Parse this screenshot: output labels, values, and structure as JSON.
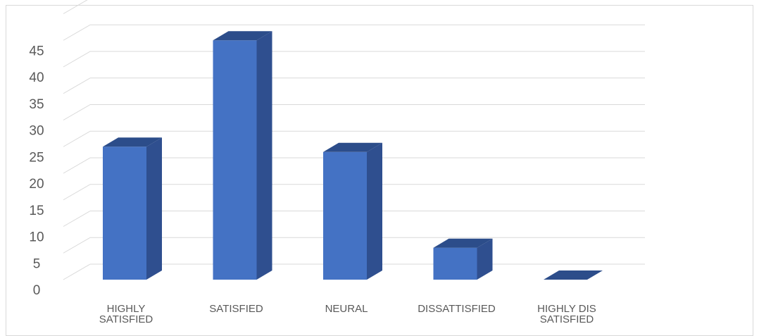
{
  "chart_data": {
    "type": "bar",
    "style": "3d-column",
    "categories": [
      [
        "HIGHLY",
        "SATISFIED"
      ],
      [
        "SATISFIED"
      ],
      [
        "NEURAL"
      ],
      [
        "DISSATTISFIED"
      ],
      [
        "HIGHLY DIS",
        "SATISFIED"
      ]
    ],
    "values": [
      25,
      45,
      24,
      6,
      0
    ],
    "yticks": [
      0,
      5,
      10,
      15,
      20,
      25,
      30,
      35,
      40,
      45
    ],
    "ylim": [
      0,
      50
    ],
    "grid": true,
    "legend": "none",
    "colors": {
      "front": "#4472c4",
      "side": "#2f4f8f",
      "top": "#2c4d8a",
      "grid": "#d9d9d9",
      "text": "#595959"
    }
  }
}
